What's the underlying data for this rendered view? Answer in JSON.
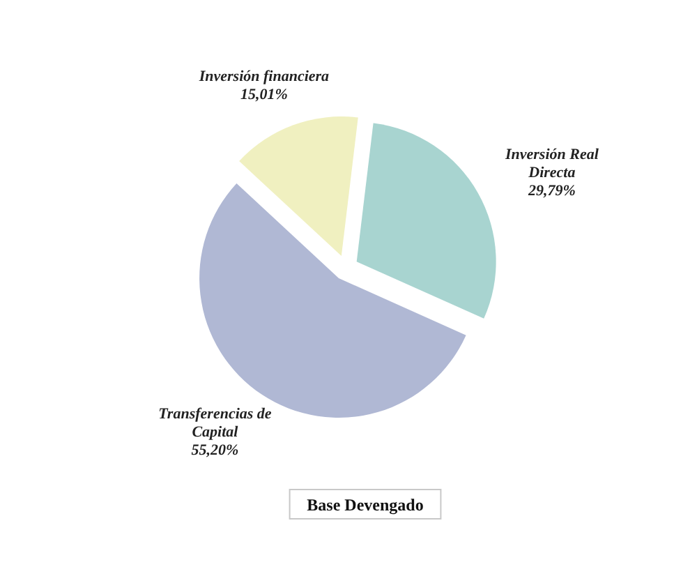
{
  "chart_data": {
    "type": "pie",
    "title": "Base Devengado",
    "categories": [
      "Inversión Real Directa",
      "Transferencias de Capital",
      "Inversión financiera"
    ],
    "values": [
      29.79,
      55.2,
      15.01
    ],
    "colors": [
      "#a8d4d0",
      "#b0b8d4",
      "#f0f0c0"
    ],
    "value_labels": [
      "29,79%",
      "55,20%",
      "15,01%"
    ]
  }
}
